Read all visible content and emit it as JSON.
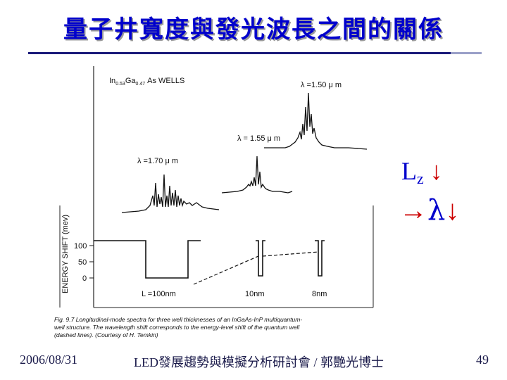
{
  "title": "量子井寬度與發光波長之間的關係",
  "figure": {
    "header": "In0.53Ga0.47As WELLS",
    "header_main": "In",
    "header_sub1": "0.53",
    "header_ga": "Ga",
    "header_sub2": "0.47",
    "header_rest": "As  WELLS",
    "lambda_150": "λ =1.50 μ m",
    "lambda_155": "λ = 1.55 μ m",
    "lambda_170": "λ =1.70 μ m",
    "ylabel": "ENERGY SHIFT (mev)",
    "ticks": [
      "100",
      "50",
      "0"
    ],
    "lz_100": "L  =100nm",
    "lz_10": "10nm",
    "lz_8": "8nm",
    "caption_line1": "Fig. 9.7  Longitudinal-mode spectra for three well thicknesses of an InGaAs-InP multiquantum-",
    "caption_line2": "well structure. The wavelength shift corresponds to the energy-level shift of the quantum well",
    "caption_line3": "(dashed lines). (Courtesy of H. Temkin)"
  },
  "annotation": {
    "lz": "L",
    "lz_sub": "z",
    "down_arrow": "↓",
    "right_arrow": "→",
    "lambda": "λ",
    "lambda_down": "↓"
  },
  "footer": {
    "date": "2006/08/31",
    "conference": "LED發展趨勢與模擬分析研討會 / 郭艷光博士",
    "page": "49"
  },
  "colors": {
    "title": "#0000cc",
    "arrow": "#cc0000",
    "rule": "#1a1a7a"
  }
}
